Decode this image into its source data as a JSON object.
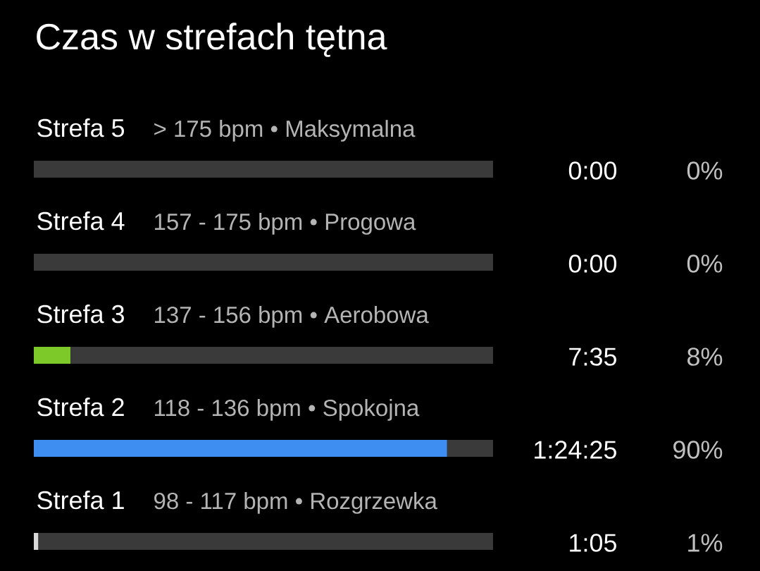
{
  "chart_data": {
    "type": "bar",
    "orientation": "horizontal",
    "stacked": true,
    "title": "Czas w strefach tętna",
    "categories": [
      "Strefa 5",
      "Strefa 4",
      "Strefa 3",
      "Strefa 2",
      "Strefa 1"
    ],
    "series": [
      {
        "values": [
          0,
          0,
          8,
          90,
          1
        ],
        "colors": [
          "#8e8e8e",
          "#8e8e8e",
          "#7ec92a",
          "#3d8ef0",
          "#d9d9d9"
        ],
        "value_labels": [
          "0%",
          "0%",
          "8%",
          "90%",
          "1%"
        ]
      },
      {
        "values": [
          100,
          100,
          92,
          10,
          99
        ],
        "color": "#3a3a3a"
      }
    ],
    "xlim": [
      0,
      100
    ],
    "annotations": [
      "> 175 bpm • Maksymalna",
      "0:00",
      "157 - 175 bpm • Progowa",
      "0:00",
      "137 - 156 bpm • Aerobowa",
      "7:35",
      "118 - 136 bpm • Spokojna",
      "1:24:25",
      "98 - 117 bpm • Rozgrzewka",
      "1:05"
    ]
  }
}
